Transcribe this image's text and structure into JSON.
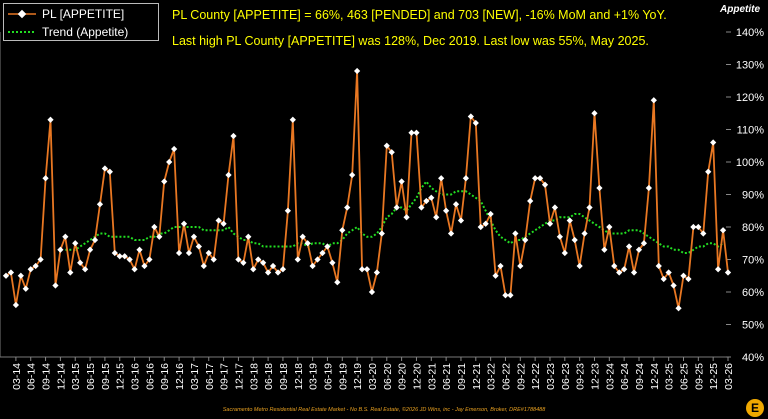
{
  "legend": {
    "series1": "PL [APPETITE]",
    "series2": "Trend (Appetite)"
  },
  "headline": {
    "line1": "PL County [APPETITE] = 66%, 463 [PENDED] and 703 [NEW], -16% MoM and +1% YoY.",
    "line2": "Last high PL County [APPETITE] was 128%, Dec 2019. Last low was 55%, May 2025."
  },
  "footer": "Sacramento Metro Residential Real Estate Market - No B.S. Real Estate, ©2026 JD Wins, inc - Jay Emerson, Broker, DRE#1788488",
  "logo_glyph": "E",
  "colors": {
    "series1": "#e87722",
    "trend": "#22dd22",
    "headline": "#ffff00",
    "background": "#000000"
  },
  "chart_data": {
    "type": "line",
    "ylabel": "Appetite",
    "ylim": [
      40,
      140
    ],
    "yticks": [
      "40%",
      "50%",
      "60%",
      "70%",
      "80%",
      "90%",
      "100%",
      "110%",
      "120%",
      "130%",
      "140%"
    ],
    "xticks": [
      "03-14",
      "06-14",
      "09-14",
      "12-14",
      "03-15",
      "06-15",
      "09-15",
      "12-15",
      "03-16",
      "06-16",
      "09-16",
      "12-16",
      "03-17",
      "06-17",
      "09-17",
      "12-17",
      "03-18",
      "06-18",
      "09-18",
      "12-18",
      "03-19",
      "06-19",
      "09-19",
      "12-19",
      "03-20",
      "06-20",
      "09-20",
      "12-20",
      "03-21",
      "06-21",
      "09-21",
      "12-21",
      "03-22",
      "06-22",
      "09-22",
      "12-22",
      "03-23",
      "06-23",
      "09-23",
      "12-23",
      "03-24",
      "06-24",
      "09-24",
      "12-24",
      "03-25",
      "06-25",
      "09-25",
      "12-25",
      "03-26"
    ],
    "x_start": "2014-01",
    "series": [
      {
        "name": "PL [APPETITE]",
        "values": [
          65,
          66,
          56,
          65,
          61,
          67,
          68,
          70,
          95,
          113,
          62,
          73,
          77,
          66,
          75,
          69,
          67,
          73,
          76,
          87,
          98,
          97,
          72,
          71,
          71,
          70,
          67,
          73,
          68,
          70,
          80,
          77,
          94,
          100,
          104,
          72,
          81,
          72,
          77,
          74,
          68,
          72,
          70,
          82,
          81,
          96,
          108,
          70,
          69,
          77,
          67,
          70,
          69,
          66,
          68,
          66,
          67,
          85,
          113,
          70,
          77,
          75,
          68,
          70,
          72,
          74,
          69,
          63,
          79,
          86,
          96,
          128,
          67,
          67,
          60,
          66,
          78,
          105,
          103,
          86,
          94,
          83,
          109,
          109,
          86,
          88,
          89,
          83,
          95,
          85,
          78,
          87,
          82,
          95,
          114,
          112,
          80,
          81,
          84,
          65,
          68,
          59,
          59,
          78,
          68,
          76,
          88,
          95,
          95,
          93,
          81,
          86,
          77,
          72,
          82,
          76,
          68,
          78,
          86,
          115,
          92,
          73,
          80,
          68,
          66,
          67,
          74,
          66,
          73,
          75,
          92,
          119,
          68,
          64,
          66,
          62,
          55,
          65,
          64,
          80,
          80,
          78,
          97,
          106,
          67,
          79,
          66
        ]
      },
      {
        "name": "Trend (Appetite)",
        "start_index": 12,
        "values": [
          73,
          73,
          73,
          74,
          75,
          76,
          77,
          78,
          78,
          77,
          77,
          77,
          77,
          77,
          76,
          76,
          76,
          77,
          77,
          78,
          78,
          79,
          80,
          80,
          80,
          80,
          80,
          80,
          79,
          79,
          79,
          79,
          79,
          80,
          78,
          77,
          76,
          76,
          75,
          75,
          74,
          74,
          74,
          74,
          74,
          74,
          74,
          75,
          75,
          74,
          75,
          75,
          75,
          74,
          75,
          75,
          76,
          78,
          79,
          80,
          78,
          77,
          77,
          78,
          80,
          83,
          84,
          86,
          86,
          85,
          87,
          89,
          92,
          94,
          92,
          91,
          90,
          90,
          90,
          91,
          91,
          91,
          90,
          89,
          88,
          85,
          82,
          79,
          77,
          76,
          75,
          76,
          76,
          77,
          78,
          79,
          80,
          81,
          82,
          82,
          83,
          83,
          83,
          84,
          84,
          83,
          82,
          81,
          80,
          79,
          78,
          78,
          78,
          78,
          79,
          79,
          79,
          78,
          77,
          76,
          75,
          74,
          74,
          73,
          73,
          72,
          72,
          73,
          74,
          74,
          75,
          75,
          74,
          75
        ]
      }
    ]
  }
}
